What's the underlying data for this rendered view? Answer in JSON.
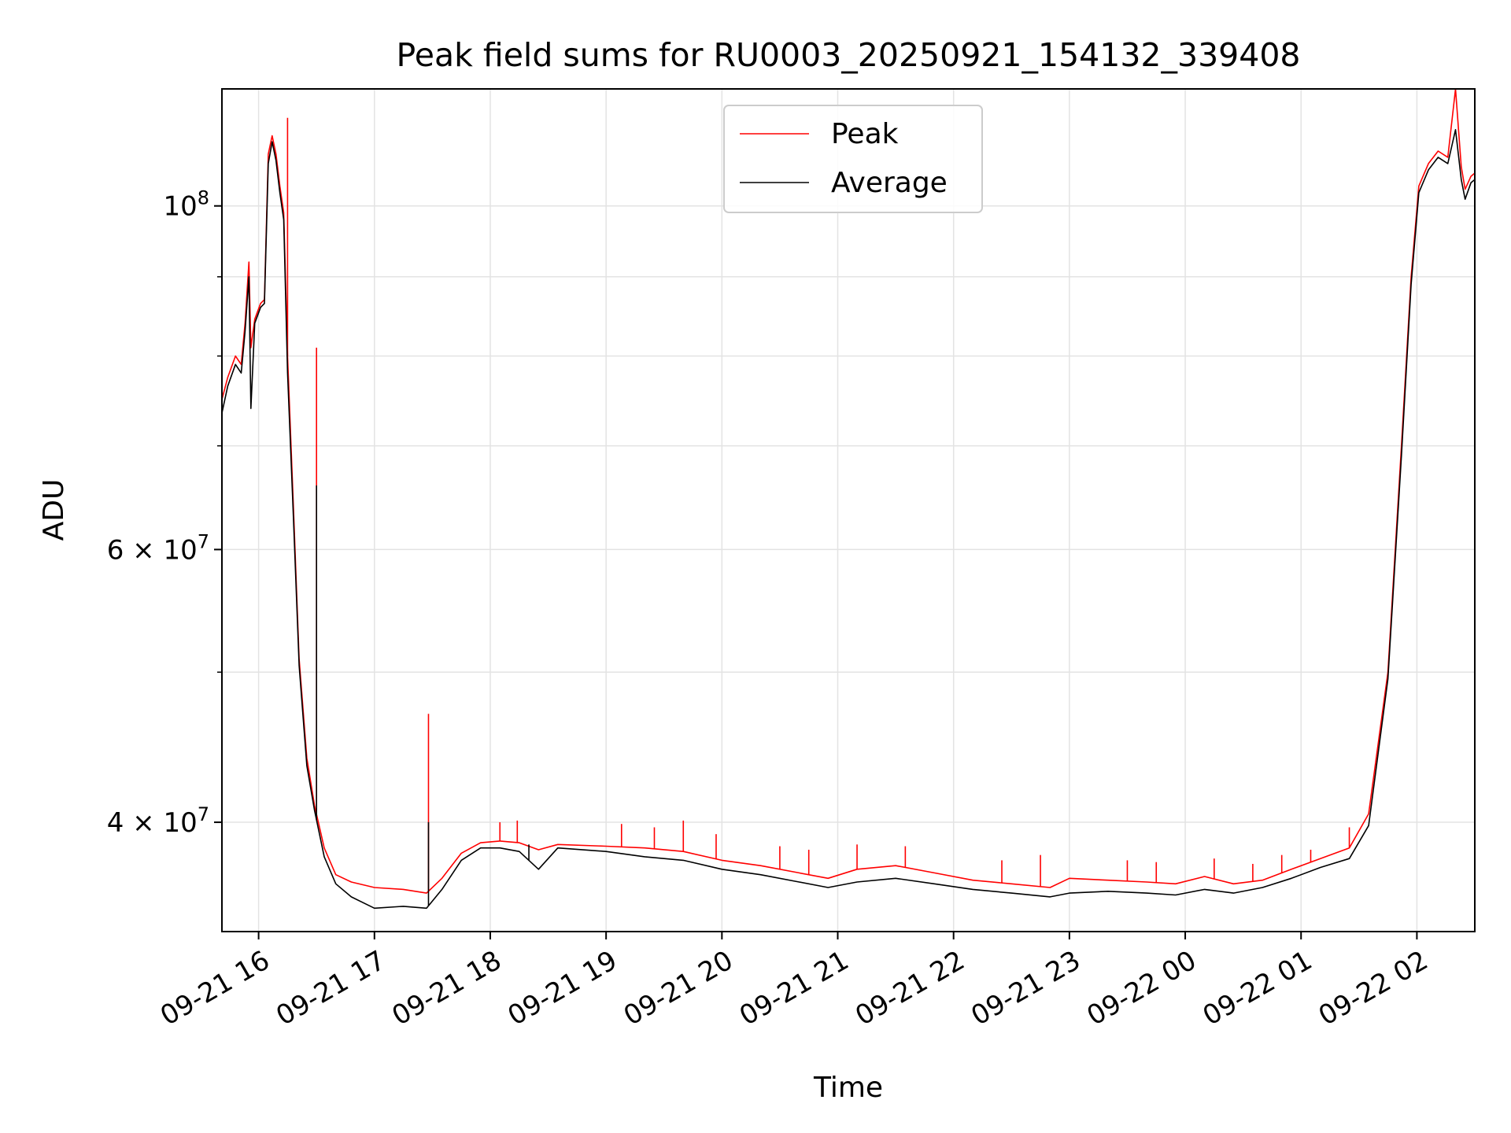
{
  "chart_data": {
    "type": "line",
    "title": "Peak field sums for RU0003_20250921_154132_339408",
    "xlabel": "Time",
    "ylabel": "ADU",
    "y_scale": "log",
    "ylim": [
      34000000,
      119000000
    ],
    "xlim": [
      "2025-09-21 15:41",
      "2025-09-22 02:30"
    ],
    "grid": true,
    "legend": "top-center",
    "x_ticks": [
      {
        "t": "2025-09-21 16:00",
        "label": "09-21 16"
      },
      {
        "t": "2025-09-21 17:00",
        "label": "09-21 17"
      },
      {
        "t": "2025-09-21 18:00",
        "label": "09-21 18"
      },
      {
        "t": "2025-09-21 19:00",
        "label": "09-21 19"
      },
      {
        "t": "2025-09-21 20:00",
        "label": "09-21 20"
      },
      {
        "t": "2025-09-21 21:00",
        "label": "09-21 21"
      },
      {
        "t": "2025-09-21 22:00",
        "label": "09-21 22"
      },
      {
        "t": "2025-09-21 23:00",
        "label": "09-21 23"
      },
      {
        "t": "2025-09-22 00:00",
        "label": "09-22 00"
      },
      {
        "t": "2025-09-22 01:00",
        "label": "09-22 01"
      },
      {
        "t": "2025-09-22 02:00",
        "label": "09-22 02"
      }
    ],
    "y_major_ticks": [
      {
        "value": 40000000,
        "base": "4 × 10",
        "exp": "7"
      },
      {
        "value": 60000000,
        "base": "6 × 10",
        "exp": "7"
      },
      {
        "value": 100000000,
        "base": "10",
        "exp": "8"
      }
    ],
    "y_minor_ticks": [
      50000000,
      70000000,
      80000000,
      90000000
    ],
    "series": [
      {
        "name": "Peak",
        "color": "#ff0000",
        "points": [
          [
            "2025-09-21 15:41",
            75000000
          ],
          [
            "2025-09-21 15:44",
            77500000
          ],
          [
            "2025-09-21 15:48",
            80000000
          ],
          [
            "2025-09-21 15:51",
            79000000
          ],
          [
            "2025-09-21 15:53",
            84000000
          ],
          [
            "2025-09-21 15:55",
            92000000
          ],
          [
            "2025-09-21 15:56",
            81000000
          ],
          [
            "2025-09-21 15:58",
            84500000
          ],
          [
            "2025-09-21 16:01",
            86500000
          ],
          [
            "2025-09-21 16:03",
            87000000
          ],
          [
            "2025-09-21 16:05",
            108000000
          ],
          [
            "2025-09-21 16:07",
            111000000
          ],
          [
            "2025-09-21 16:09",
            108000000
          ],
          [
            "2025-09-21 16:11",
            103000000
          ],
          [
            "2025-09-21 16:13",
            99000000
          ],
          [
            "2025-09-21 16:15",
            80000000
          ],
          [
            "2025-09-21 16:18",
            64000000
          ],
          [
            "2025-09-21 16:21",
            51000000
          ],
          [
            "2025-09-21 16:25",
            44000000
          ],
          [
            "2025-09-21 16:29",
            41000000
          ],
          [
            "2025-09-21 16:34",
            38500000
          ],
          [
            "2025-09-21 16:40",
            37000000
          ],
          [
            "2025-09-21 16:48",
            36600000
          ],
          [
            "2025-09-21 17:00",
            36300000
          ],
          [
            "2025-09-21 17:15",
            36200000
          ],
          [
            "2025-09-21 17:27",
            36000000
          ],
          [
            "2025-09-21 17:35",
            36800000
          ],
          [
            "2025-09-21 17:45",
            38200000
          ],
          [
            "2025-09-21 17:55",
            38800000
          ],
          [
            "2025-09-21 18:05",
            38900000
          ],
          [
            "2025-09-21 18:15",
            38800000
          ],
          [
            "2025-09-21 18:25",
            38400000
          ],
          [
            "2025-09-21 18:35",
            38700000
          ],
          [
            "2025-09-21 19:00",
            38600000
          ],
          [
            "2025-09-21 19:20",
            38500000
          ],
          [
            "2025-09-21 19:40",
            38300000
          ],
          [
            "2025-09-21 20:00",
            37800000
          ],
          [
            "2025-09-21 20:20",
            37500000
          ],
          [
            "2025-09-21 20:40",
            37100000
          ],
          [
            "2025-09-21 20:55",
            36800000
          ],
          [
            "2025-09-21 21:10",
            37300000
          ],
          [
            "2025-09-21 21:30",
            37500000
          ],
          [
            "2025-09-21 21:50",
            37100000
          ],
          [
            "2025-09-21 22:10",
            36700000
          ],
          [
            "2025-09-21 22:30",
            36500000
          ],
          [
            "2025-09-21 22:50",
            36300000
          ],
          [
            "2025-09-21 23:00",
            36800000
          ],
          [
            "2025-09-21 23:20",
            36700000
          ],
          [
            "2025-09-21 23:40",
            36600000
          ],
          [
            "2025-09-21 23:55",
            36500000
          ],
          [
            "2025-09-22 00:10",
            36900000
          ],
          [
            "2025-09-22 00:25",
            36500000
          ],
          [
            "2025-09-22 00:40",
            36700000
          ],
          [
            "2025-09-22 00:55",
            37300000
          ],
          [
            "2025-09-22 01:10",
            37900000
          ],
          [
            "2025-09-22 01:25",
            38500000
          ],
          [
            "2025-09-22 01:35",
            40500000
          ],
          [
            "2025-09-22 01:45",
            50000000
          ],
          [
            "2025-09-22 01:52",
            70000000
          ],
          [
            "2025-09-22 01:57",
            90000000
          ],
          [
            "2025-09-22 02:01",
            103000000
          ],
          [
            "2025-09-22 02:06",
            106500000
          ],
          [
            "2025-09-22 02:11",
            108500000
          ],
          [
            "2025-09-22 02:16",
            107500000
          ],
          [
            "2025-09-22 02:20",
            119000000
          ],
          [
            "2025-09-22 02:23",
            106000000
          ],
          [
            "2025-09-22 02:25",
            102500000
          ],
          [
            "2025-09-22 02:28",
            104500000
          ],
          [
            "2025-09-22 02:30",
            105000000
          ]
        ],
        "spikes": [
          [
            "2025-09-21 16:15",
            114000000
          ],
          [
            "2025-09-21 16:30",
            81000000
          ],
          [
            "2025-09-21 17:28",
            47000000
          ],
          [
            "2025-09-21 18:05",
            40000000
          ],
          [
            "2025-09-21 18:14",
            40100000
          ],
          [
            "2025-09-21 19:08",
            39900000
          ],
          [
            "2025-09-21 19:25",
            39700000
          ],
          [
            "2025-09-21 19:40",
            40100000
          ],
          [
            "2025-09-21 19:57",
            39300000
          ],
          [
            "2025-09-21 20:30",
            38600000
          ],
          [
            "2025-09-21 20:45",
            38400000
          ],
          [
            "2025-09-21 21:10",
            38700000
          ],
          [
            "2025-09-21 21:35",
            38600000
          ],
          [
            "2025-09-21 22:25",
            37800000
          ],
          [
            "2025-09-21 22:45",
            38100000
          ],
          [
            "2025-09-21 23:30",
            37800000
          ],
          [
            "2025-09-21 23:45",
            37700000
          ],
          [
            "2025-09-22 00:15",
            37900000
          ],
          [
            "2025-09-22 00:35",
            37600000
          ],
          [
            "2025-09-22 00:50",
            38100000
          ],
          [
            "2025-09-22 01:05",
            38400000
          ],
          [
            "2025-09-22 01:25",
            39700000
          ]
        ]
      },
      {
        "name": "Average",
        "color": "#000000",
        "points": [
          [
            "2025-09-21 15:41",
            73500000
          ],
          [
            "2025-09-21 15:44",
            76500000
          ],
          [
            "2025-09-21 15:48",
            79000000
          ],
          [
            "2025-09-21 15:51",
            78000000
          ],
          [
            "2025-09-21 15:53",
            83000000
          ],
          [
            "2025-09-21 15:55",
            90000000
          ],
          [
            "2025-09-21 15:56",
            74000000
          ],
          [
            "2025-09-21 15:58",
            84000000
          ],
          [
            "2025-09-21 16:01",
            86000000
          ],
          [
            "2025-09-21 16:03",
            86500000
          ],
          [
            "2025-09-21 16:05",
            106500000
          ],
          [
            "2025-09-21 16:07",
            110000000
          ],
          [
            "2025-09-21 16:09",
            107000000
          ],
          [
            "2025-09-21 16:11",
            102000000
          ],
          [
            "2025-09-21 16:13",
            98000000
          ],
          [
            "2025-09-21 16:15",
            78000000
          ],
          [
            "2025-09-21 16:18",
            63000000
          ],
          [
            "2025-09-21 16:21",
            50500000
          ],
          [
            "2025-09-21 16:25",
            43500000
          ],
          [
            "2025-09-21 16:29",
            40700000
          ],
          [
            "2025-09-21 16:34",
            38000000
          ],
          [
            "2025-09-21 16:40",
            36500000
          ],
          [
            "2025-09-21 16:48",
            35800000
          ],
          [
            "2025-09-21 17:00",
            35200000
          ],
          [
            "2025-09-21 17:15",
            35300000
          ],
          [
            "2025-09-21 17:27",
            35200000
          ],
          [
            "2025-09-21 17:35",
            36200000
          ],
          [
            "2025-09-21 17:45",
            37800000
          ],
          [
            "2025-09-21 17:55",
            38500000
          ],
          [
            "2025-09-21 18:05",
            38500000
          ],
          [
            "2025-09-21 18:15",
            38300000
          ],
          [
            "2025-09-21 18:25",
            37300000
          ],
          [
            "2025-09-21 18:35",
            38500000
          ],
          [
            "2025-09-21 19:00",
            38300000
          ],
          [
            "2025-09-21 19:20",
            38000000
          ],
          [
            "2025-09-21 19:40",
            37800000
          ],
          [
            "2025-09-21 20:00",
            37300000
          ],
          [
            "2025-09-21 20:20",
            37000000
          ],
          [
            "2025-09-21 20:40",
            36600000
          ],
          [
            "2025-09-21 20:55",
            36300000
          ],
          [
            "2025-09-21 21:10",
            36600000
          ],
          [
            "2025-09-21 21:30",
            36800000
          ],
          [
            "2025-09-21 21:50",
            36500000
          ],
          [
            "2025-09-21 22:10",
            36200000
          ],
          [
            "2025-09-21 22:30",
            36000000
          ],
          [
            "2025-09-21 22:50",
            35800000
          ],
          [
            "2025-09-21 23:00",
            36000000
          ],
          [
            "2025-09-21 23:20",
            36100000
          ],
          [
            "2025-09-21 23:40",
            36000000
          ],
          [
            "2025-09-21 23:55",
            35900000
          ],
          [
            "2025-09-22 00:10",
            36200000
          ],
          [
            "2025-09-22 00:25",
            36000000
          ],
          [
            "2025-09-22 00:40",
            36300000
          ],
          [
            "2025-09-22 00:55",
            36800000
          ],
          [
            "2025-09-22 01:10",
            37400000
          ],
          [
            "2025-09-22 01:25",
            37900000
          ],
          [
            "2025-09-22 01:35",
            39800000
          ],
          [
            "2025-09-22 01:45",
            49500000
          ],
          [
            "2025-09-22 01:52",
            69000000
          ],
          [
            "2025-09-22 01:57",
            89000000
          ],
          [
            "2025-09-22 02:01",
            102000000
          ],
          [
            "2025-09-22 02:06",
            105500000
          ],
          [
            "2025-09-22 02:11",
            107500000
          ],
          [
            "2025-09-22 02:16",
            106500000
          ],
          [
            "2025-09-22 02:20",
            112000000
          ],
          [
            "2025-09-22 02:23",
            104000000
          ],
          [
            "2025-09-22 02:25",
            101000000
          ],
          [
            "2025-09-22 02:28",
            103500000
          ],
          [
            "2025-09-22 02:30",
            104000000
          ]
        ],
        "spikes": [
          [
            "2025-09-21 16:30",
            66000000
          ],
          [
            "2025-09-21 17:28",
            40000000
          ],
          [
            "2025-09-21 18:20",
            38700000
          ]
        ]
      }
    ]
  }
}
